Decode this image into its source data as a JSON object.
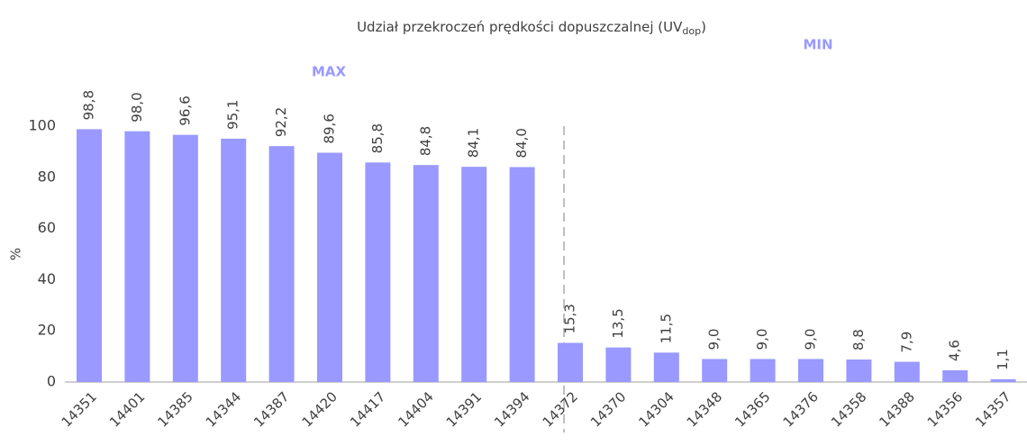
{
  "chart_data": {
    "type": "bar",
    "title": [
      "Udział przekroczeń prędkości dopuszczalnej (UV",
      "dop",
      ")"
    ],
    "y_label": "%",
    "annotations": [
      "MAX",
      "MIN"
    ],
    "categories": [
      "14351",
      "14401",
      "14385",
      "14344",
      "14387",
      "14420",
      "14417",
      "14404",
      "14391",
      "14394",
      "14372",
      "14370",
      "14304",
      "14348",
      "14365",
      "14376",
      "14358",
      "14388",
      "14356",
      "14357"
    ],
    "values": [
      98.8,
      98.0,
      96.6,
      95.1,
      92.2,
      89.6,
      85.8,
      84.8,
      84.1,
      84.0,
      15.3,
      13.5,
      11.5,
      9.0,
      9.0,
      9.0,
      8.8,
      7.9,
      4.6,
      1.1
    ],
    "value_labels": [
      "98,8",
      "98,0",
      "96,6",
      "95,1",
      "92,2",
      "89,6",
      "85,8",
      "84,8",
      "84,1",
      "84,0",
      "15,3",
      "13,5",
      "11,5",
      "9,0",
      "9,0",
      "9,0",
      "8,8",
      "7,9",
      "4,6",
      "1,1"
    ],
    "color": "#9999ff",
    "ylim": [
      0,
      100
    ],
    "yticks": [
      0,
      20,
      40,
      60,
      80,
      100
    ],
    "grid": false
  }
}
